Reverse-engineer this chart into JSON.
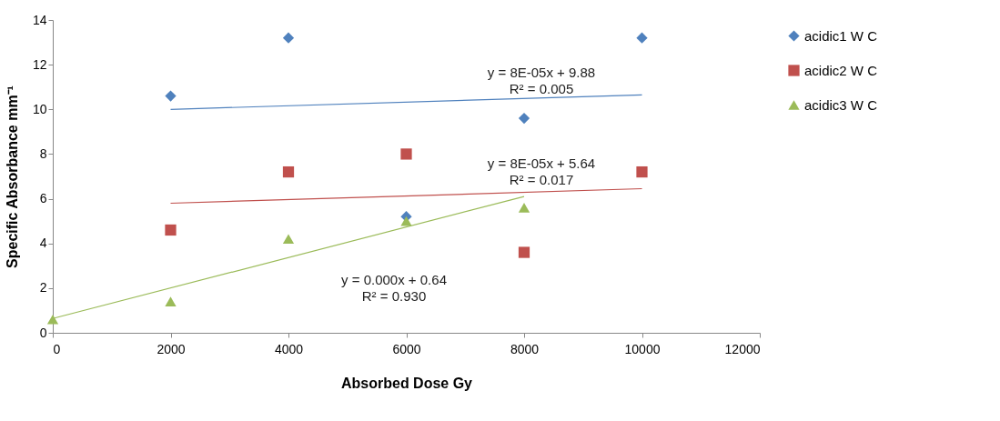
{
  "chart_data": {
    "type": "scatter",
    "xlabel": "Absorbed Dose Gy",
    "ylabel": "Specific Absorbance mm⁻¹",
    "xlim": [
      0,
      12000
    ],
    "xticks": [
      0,
      2000,
      4000,
      6000,
      8000,
      10000,
      12000
    ],
    "ylim": [
      0,
      14
    ],
    "yticks": [
      0,
      2,
      4,
      6,
      8,
      10,
      12,
      14
    ],
    "grid": false,
    "legend": "right",
    "series": [
      {
        "name": "acidic1 W C",
        "color": "#4f81bd",
        "marker": "diamond",
        "x": [
          2000,
          4000,
          6000,
          8000,
          10000
        ],
        "values": [
          10.6,
          13.2,
          5.2,
          9.6,
          13.2
        ]
      },
      {
        "name": "acidic2 W C",
        "color": "#c0504d",
        "marker": "square",
        "x": [
          2000,
          4000,
          6000,
          8000,
          10000
        ],
        "values": [
          4.6,
          7.2,
          8.0,
          3.6,
          7.2
        ]
      },
      {
        "name": "acidic3 W C",
        "color": "#9bbb59",
        "marker": "triangle",
        "x": [
          0,
          2000,
          4000,
          6000,
          8000
        ],
        "values": [
          0.6,
          1.4,
          4.2,
          5.0,
          5.6
        ]
      },
      {
        "type": "line",
        "color": "#4f81bd",
        "x": [
          2000,
          10000
        ],
        "values": [
          10.0,
          10.65
        ]
      },
      {
        "type": "line",
        "color": "#c0504d",
        "x": [
          2000,
          10000
        ],
        "values": [
          5.8,
          6.45
        ]
      },
      {
        "type": "line",
        "color": "#9bbb59",
        "x": [
          0,
          8000
        ],
        "values": [
          0.64,
          6.1
        ]
      }
    ],
    "annotations": [
      "y = 8E-05x + 9.88\nR² = 0.005",
      "y = 8E-05x + 5.64\nR² = 0.017",
      "y = 0.000x + 0.64\nR² = 0.930"
    ]
  }
}
